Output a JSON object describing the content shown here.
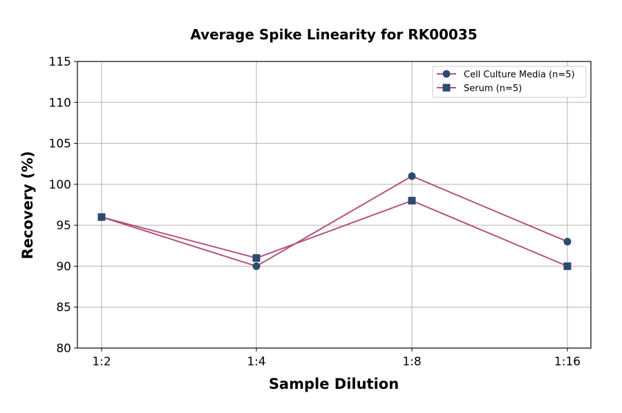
{
  "chart_data": {
    "type": "line",
    "title": "Average Spike Linearity for RK00035",
    "xlabel": "Sample Dilution",
    "ylabel": "Recovery (%)",
    "categories": [
      "1:2",
      "1:4",
      "1:8",
      "1:16"
    ],
    "ylim": [
      80,
      115
    ],
    "yticks": [
      80,
      85,
      90,
      95,
      100,
      105,
      110,
      115
    ],
    "grid": true,
    "legend_position": "top-right",
    "series": [
      {
        "name": "Cell Culture Media (n=5)",
        "values": [
          96,
          90,
          101,
          93
        ],
        "marker": "circle",
        "line_color": "#b5507a",
        "marker_color": "#2e4a6e"
      },
      {
        "name": "Serum (n=5)",
        "values": [
          96,
          91,
          98,
          90
        ],
        "marker": "square",
        "line_color": "#b5507a",
        "marker_color": "#2e4a6e"
      }
    ]
  }
}
